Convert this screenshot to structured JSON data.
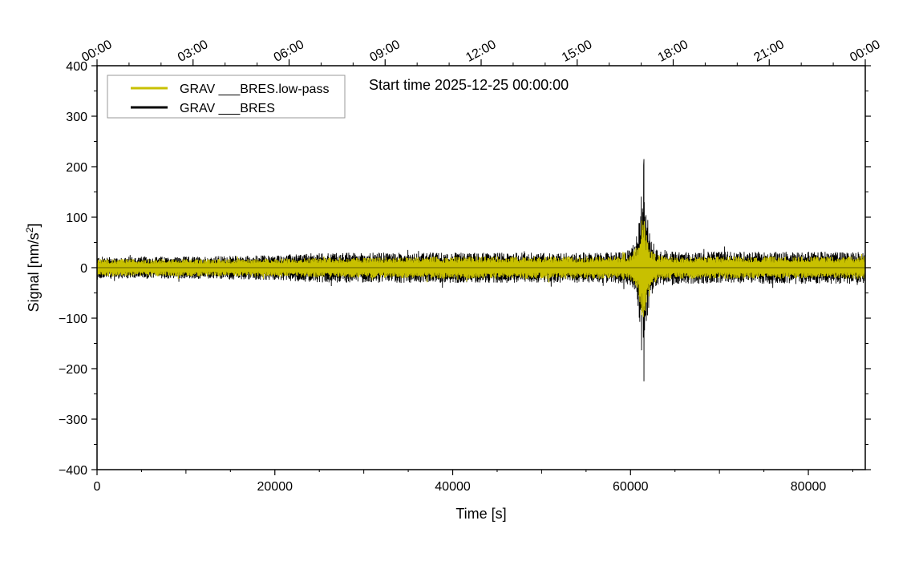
{
  "chart_data": {
    "type": "line",
    "title": "",
    "annotation": "Start time 2025-12-25 00:00:00",
    "xlabel": "Time [s]",
    "ylabel": "Signal [nm/s",
    "ylabel_superscript": "2",
    "ylabel_suffix": "]",
    "xlim": [
      0,
      86400
    ],
    "ylim": [
      -400,
      400
    ],
    "x_ticks": [
      0,
      20000,
      40000,
      60000,
      80000
    ],
    "x_tick_labels": [
      "0",
      "20000",
      "40000",
      "60000",
      "80000"
    ],
    "y_ticks": [
      -400,
      -300,
      -200,
      -100,
      0,
      100,
      200,
      300,
      400
    ],
    "y_tick_labels": [
      "−400",
      "−300",
      "−200",
      "−100",
      "0",
      "100",
      "200",
      "300",
      "400"
    ],
    "top_axis_ticks": [
      0,
      10800,
      21600,
      32400,
      43200,
      54000,
      64800,
      75600,
      86400
    ],
    "top_axis_tick_labels": [
      "00:00",
      "03:00",
      "06:00",
      "09:00",
      "12:00",
      "15:00",
      "18:00",
      "21:00",
      "00:00"
    ],
    "grid": false,
    "legend_position": "top-left",
    "colors": {
      "raw": "#000000",
      "lowpass": "#c8c000"
    },
    "series": [
      {
        "name": "GRAV ___BRES.low-pass",
        "color": "#c8c000",
        "envelope_x": [
          0,
          10000,
          20000,
          26000,
          30000,
          40000,
          50000,
          58000,
          60000,
          60800,
          61200,
          61500,
          61800,
          62200,
          63000,
          65000,
          70000,
          80000,
          86400
        ],
        "envelope_y": [
          17,
          17,
          18,
          20,
          20,
          22,
          22,
          22,
          25,
          45,
          95,
          100,
          70,
          40,
          25,
          22,
          22,
          22,
          22
        ]
      },
      {
        "name": "GRAV ___BRES",
        "color": "#000000",
        "envelope_x": [
          0,
          10000,
          20000,
          26000,
          30000,
          40000,
          50000,
          58000,
          60000,
          60800,
          61200,
          61500,
          61800,
          62200,
          63000,
          65000,
          70000,
          80000,
          86400
        ],
        "envelope_y": [
          22,
          22,
          25,
          30,
          30,
          30,
          30,
          30,
          35,
          70,
          160,
          215,
          120,
          60,
          38,
          32,
          32,
          32,
          32
        ],
        "peak_max": [
          61500,
          215
        ],
        "peak_min": [
          61500,
          -225
        ]
      }
    ]
  }
}
